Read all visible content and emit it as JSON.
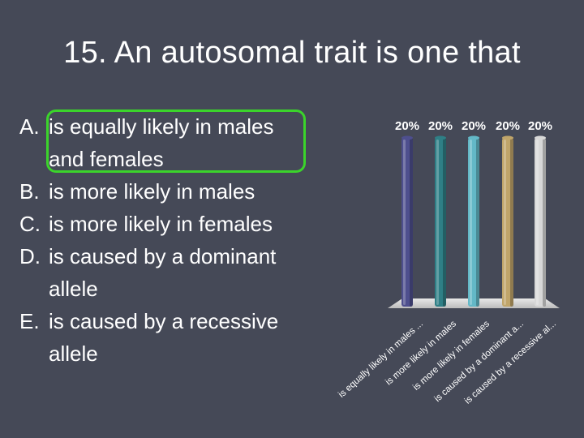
{
  "slide": {
    "title": "15.  An autosomal trait is one that",
    "options": [
      {
        "letter": "A.",
        "text": "is equally likely in males and females"
      },
      {
        "letter": "B.",
        "text": "is more likely in males"
      },
      {
        "letter": "C.",
        "text": "is more likely in females"
      },
      {
        "letter": "D.",
        "text": "is caused by a dominant allele"
      },
      {
        "letter": "E.",
        "text": "is caused by a recessive allele"
      }
    ],
    "highlighted_option": "A.",
    "highlight_color": "#3bd42b"
  },
  "chart_data": {
    "type": "bar",
    "categories": [
      "is equally likely in males ...",
      "is more likely in males",
      "is more likely in females",
      "is caused by a dominant a...",
      "is caused by a recessive al..."
    ],
    "values": [
      20,
      20,
      20,
      20,
      20
    ],
    "value_labels": [
      "20%",
      "20%",
      "20%",
      "20%",
      "20%"
    ],
    "colors": [
      "#4e4f8e",
      "#2f7f86",
      "#63b8c7",
      "#c0a56a",
      "#d8d8d8"
    ],
    "ylim": [
      0,
      20
    ],
    "grid": false
  }
}
